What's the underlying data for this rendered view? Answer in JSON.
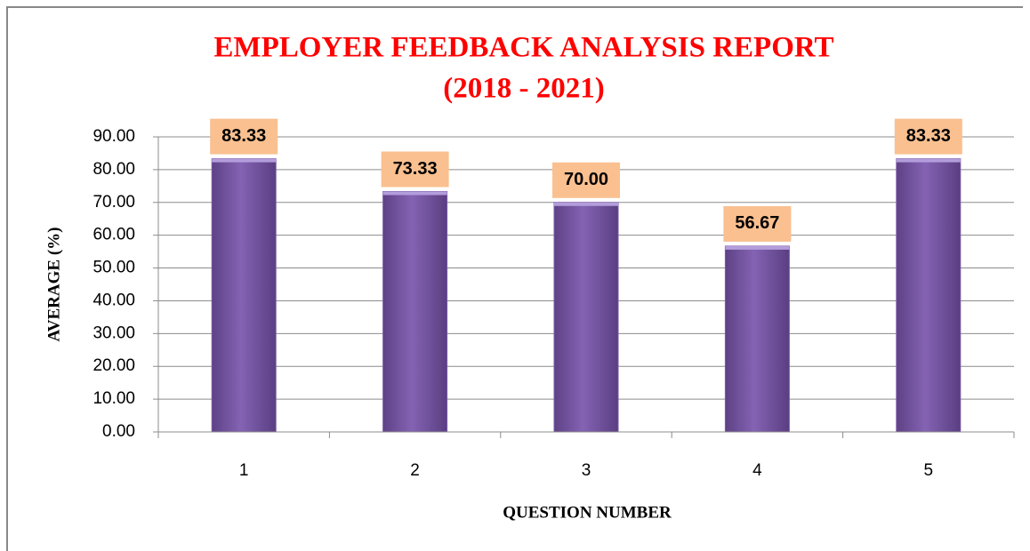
{
  "chart_data": {
    "type": "bar",
    "title": "EMPLOYER FEEDBACK ANALYSIS REPORT",
    "subtitle": "(2018 - 2021)",
    "x_label": "QUESTION NUMBER",
    "y_label": "AVERAGE (%)",
    "categories": [
      "1",
      "2",
      "3",
      "4",
      "5"
    ],
    "values": [
      83.33,
      73.33,
      70,
      56.67,
      83.33
    ],
    "value_labels": [
      "83.33",
      "73.33",
      "70.00",
      "56.67",
      "83.33"
    ],
    "color": "#7b5aa6",
    "label_color": "#fac090",
    "ylim": [
      0,
      90
    ],
    "yticks": [
      {
        "value": 0,
        "label": "0.00"
      },
      {
        "value": 10,
        "label": "10.00"
      },
      {
        "value": 20,
        "label": "20.00"
      },
      {
        "value": 30,
        "label": "30.00"
      },
      {
        "value": 40,
        "label": "40.00"
      },
      {
        "value": 50,
        "label": "50.00"
      },
      {
        "value": 60,
        "label": "60.00"
      },
      {
        "value": 70,
        "label": "70.00"
      },
      {
        "value": 80,
        "label": "80.00"
      },
      {
        "value": 90,
        "label": "90.00"
      }
    ],
    "grid": true
  }
}
